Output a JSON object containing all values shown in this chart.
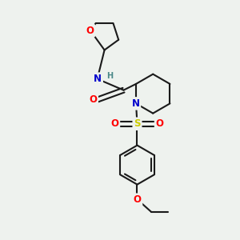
{
  "bg_color": "#eef2ee",
  "bond_color": "#1a1a1a",
  "bond_width": 1.5,
  "atom_colors": {
    "O": "#ff0000",
    "N": "#0000cc",
    "S": "#cccc00",
    "H": "#4a8888",
    "C": "#1a1a1a"
  },
  "font_size": 8.5,
  "fig_size": [
    3.0,
    3.0
  ],
  "dpi": 100,
  "xlim": [
    0,
    10
  ],
  "ylim": [
    0,
    10
  ]
}
